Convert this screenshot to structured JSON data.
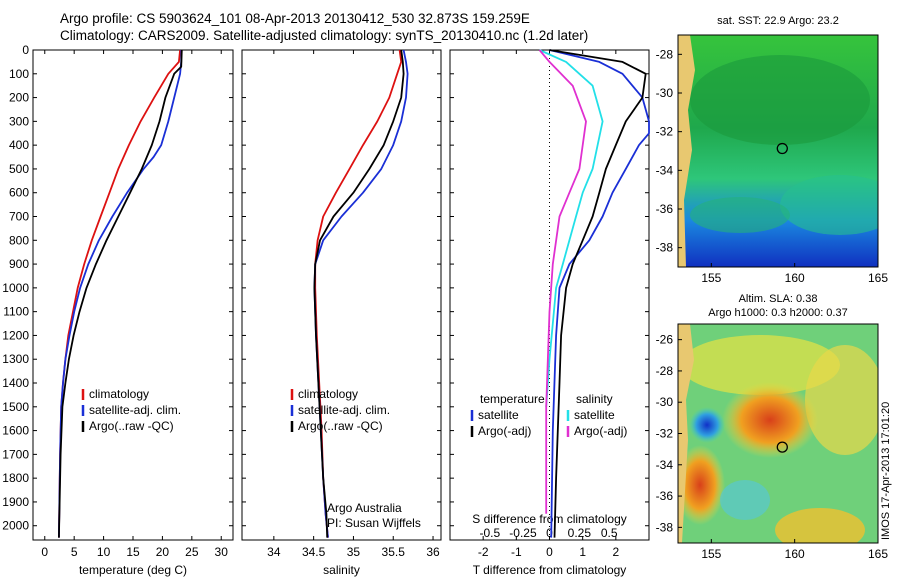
{
  "header": {
    "line1": "Argo profile: CS 5903624_101 08-Apr-2013 20130412_530 32.873S 159.259E",
    "line2": "Climatology: CARS2009. Satellite-adjusted climatology: synTS_20130410.nc (1.2d later)"
  },
  "colors": {
    "red": "#dd1111",
    "blue": "#1a2fd6",
    "black": "#000000",
    "cyan": "#22e0e8",
    "magenta": "#e030d0"
  },
  "depth_axis": {
    "ticks": [
      0,
      100,
      200,
      300,
      400,
      500,
      600,
      700,
      800,
      900,
      1000,
      1100,
      1200,
      1300,
      1400,
      1500,
      1600,
      1700,
      1800,
      1900,
      2000
    ],
    "ylim": [
      0,
      2060
    ],
    "reversed": true
  },
  "chart_data": [
    {
      "type": "line",
      "panel": "temperature",
      "xlabel": "temperature (deg C)",
      "xlim": [
        -2,
        32
      ],
      "xticks": [
        {
          "v": 0,
          "t": "0"
        },
        {
          "v": 5,
          "t": "5"
        },
        {
          "v": 10,
          "t": "10"
        },
        {
          "v": 15,
          "t": "15"
        },
        {
          "v": 20,
          "t": "20"
        },
        {
          "v": 25,
          "t": "25"
        },
        {
          "v": 30,
          "t": "30"
        }
      ],
      "legend": [
        "climatology",
        "satellite-adj. clim.",
        "Argo(..raw -QC)"
      ],
      "series": [
        {
          "name": "climatology",
          "color": "red",
          "x": [
            23.0,
            22.8,
            21.0,
            18.6,
            16.3,
            14.3,
            12.5,
            11.0,
            9.5,
            8.0,
            6.7,
            5.6,
            4.8,
            4.0,
            3.5,
            3.1,
            2.8,
            2.6,
            2.4
          ],
          "y": [
            0,
            50,
            100,
            200,
            300,
            400,
            500,
            600,
            700,
            800,
            900,
            1000,
            1100,
            1200,
            1300,
            1400,
            1500,
            1700,
            2050
          ]
        },
        {
          "name": "satellite-adj. clim.",
          "color": "blue",
          "x": [
            23.2,
            23.2,
            23.0,
            22.0,
            21.0,
            19.8,
            18.5,
            16.8,
            14.0,
            11.5,
            9.2,
            7.4,
            6.0,
            5.0,
            4.2,
            3.5,
            3.1,
            2.8,
            2.6,
            2.4
          ],
          "y": [
            0,
            50,
            100,
            200,
            300,
            400,
            450,
            500,
            600,
            700,
            800,
            900,
            1000,
            1100,
            1200,
            1300,
            1400,
            1500,
            1700,
            2050
          ]
        },
        {
          "name": "Argo(..raw -QC)",
          "color": "black",
          "x": [
            23.3,
            23.2,
            22.0,
            20.5,
            19.5,
            18.2,
            16.5,
            14.5,
            12.5,
            10.5,
            8.7,
            7.1,
            5.9,
            4.9,
            4.1,
            3.5,
            3.0,
            2.7,
            2.4
          ],
          "y": [
            0,
            70,
            100,
            200,
            300,
            400,
            500,
            600,
            700,
            800,
            900,
            1000,
            1100,
            1200,
            1300,
            1400,
            1500,
            1700,
            2050
          ]
        }
      ]
    },
    {
      "type": "line",
      "panel": "salinity",
      "xlabel": "salinity",
      "xlim": [
        33.6,
        36.1
      ],
      "xticks": [
        {
          "v": 34,
          "t": "34"
        },
        {
          "v": 34.5,
          "t": "34.5"
        },
        {
          "v": 35,
          "t": "35"
        },
        {
          "v": 35.5,
          "t": "35.5"
        },
        {
          "v": 36,
          "t": "36"
        }
      ],
      "legend": [
        "climatology",
        "satellite-adj. clim.",
        "Argo(..raw -QC)"
      ],
      "annotation": [
        "Argo Australia",
        "PI: Susan Wijffels"
      ],
      "series": [
        {
          "name": "climatology",
          "color": "red",
          "x": [
            35.58,
            35.6,
            35.55,
            35.45,
            35.3,
            35.12,
            34.95,
            34.78,
            34.62,
            34.55,
            34.52,
            34.52,
            34.54,
            34.57,
            34.6,
            34.62,
            34.65,
            34.68
          ],
          "y": [
            0,
            50,
            100,
            200,
            300,
            400,
            500,
            600,
            700,
            800,
            900,
            1000,
            1200,
            1400,
            1600,
            1800,
            1950,
            2050
          ]
        },
        {
          "name": "satellite-adj. clim.",
          "color": "blue",
          "x": [
            35.63,
            35.66,
            35.68,
            35.66,
            35.6,
            35.5,
            35.35,
            35.12,
            34.85,
            34.62,
            34.52,
            34.51,
            34.53,
            34.56,
            34.59,
            34.62,
            34.65,
            34.68
          ],
          "y": [
            0,
            50,
            100,
            200,
            300,
            400,
            500,
            600,
            700,
            800,
            900,
            1000,
            1200,
            1400,
            1600,
            1800,
            1950,
            2050
          ]
        },
        {
          "name": "Argo(..raw -QC)",
          "color": "black",
          "x": [
            35.6,
            35.62,
            35.63,
            35.6,
            35.5,
            35.38,
            35.2,
            35.0,
            34.75,
            34.58,
            34.52,
            34.51,
            34.53,
            34.56,
            34.59,
            34.62,
            34.66,
            34.67
          ],
          "y": [
            0,
            50,
            100,
            200,
            300,
            400,
            500,
            600,
            700,
            800,
            900,
            1000,
            1200,
            1400,
            1600,
            1800,
            1950,
            2050
          ]
        }
      ]
    },
    {
      "type": "line",
      "panel": "difference",
      "xlabel": "T difference from climatology",
      "xlabel2": "S difference from climatology",
      "xlim": [
        -3,
        3
      ],
      "xticks": [
        {
          "v": -2,
          "t": "-2"
        },
        {
          "v": -1,
          "t": "-1"
        },
        {
          "v": 0,
          "t": "0"
        },
        {
          "v": 1,
          "t": "1"
        },
        {
          "v": 2,
          "t": "2"
        }
      ],
      "xticks2": [
        {
          "v": -1.8,
          "t": "-0.5"
        },
        {
          "v": -0.8,
          "t": "-0.25"
        },
        {
          "v": 0,
          "t": "0"
        },
        {
          "v": 0.9,
          "t": "0.25"
        },
        {
          "v": 1.8,
          "t": "0.5"
        }
      ],
      "legend_groups": [
        {
          "title": "temperature",
          "items": [
            "satellite",
            "Argo(-adj)"
          ]
        },
        {
          "title": "salinity",
          "items": [
            "satellite",
            "Argo(-adj)"
          ]
        }
      ],
      "series": [
        {
          "name": "temperature satellite",
          "color": "blue",
          "x": [
            0.0,
            1.5,
            2.2,
            2.8,
            3.0,
            3.0,
            2.7,
            2.3,
            1.9,
            1.6,
            1.2,
            0.6,
            0.3,
            0.2,
            0.1,
            0.05
          ],
          "y": [
            0,
            50,
            100,
            200,
            300,
            350,
            400,
            500,
            600,
            700,
            800,
            900,
            1000,
            1200,
            1600,
            2050
          ]
        },
        {
          "name": "temperature Argo(-adj)",
          "color": "black",
          "x": [
            0.0,
            2.2,
            2.9,
            2.8,
            2.3,
            2.0,
            1.7,
            1.5,
            1.3,
            1.0,
            0.7,
            0.5,
            0.35,
            0.3,
            0.2,
            0.15
          ],
          "y": [
            0,
            50,
            100,
            200,
            300,
            400,
            500,
            600,
            700,
            800,
            900,
            1000,
            1200,
            1400,
            1800,
            2050
          ]
        },
        {
          "name": "salinity satellite",
          "color": "cyan",
          "x": [
            -0.3,
            0.5,
            1.3,
            1.6,
            1.3,
            1.0,
            0.8,
            0.4,
            0.2,
            0.0,
            -0.1
          ],
          "y": [
            0,
            50,
            150,
            300,
            500,
            600,
            700,
            900,
            1000,
            1300,
            1500
          ]
        },
        {
          "name": "salinity Argo(-adj)",
          "color": "magenta",
          "x": [
            -0.3,
            0.0,
            0.7,
            1.1,
            0.9,
            0.6,
            0.3,
            0.1,
            0.0,
            -0.1,
            -0.1
          ],
          "y": [
            0,
            50,
            150,
            300,
            500,
            600,
            700,
            900,
            1100,
            1500,
            1950
          ]
        }
      ]
    },
    {
      "type": "heatmap",
      "panel": "sst-map",
      "title": "sat. SST: 22.9 Argo: 23.2",
      "xticks": [
        "155",
        "160",
        "165"
      ],
      "yticks": [
        "-28",
        "-30",
        "-32",
        "-34",
        "-36",
        "-38"
      ],
      "xlim": [
        153,
        165
      ],
      "ylim": [
        -39,
        -27
      ],
      "marker": {
        "lon": 159.26,
        "lat": -32.87
      }
    },
    {
      "type": "heatmap",
      "panel": "sla-map",
      "title": "Altim. SLA: 0.38",
      "subtitle": "Argo h1000: 0.3 h2000: 0.37",
      "xticks": [
        "155",
        "160",
        "165"
      ],
      "yticks": [
        "-26",
        "-28",
        "-30",
        "-32",
        "-34",
        "-36",
        "-38"
      ],
      "xlim": [
        153,
        165
      ],
      "ylim": [
        -39,
        -25
      ],
      "marker": {
        "lon": 159.26,
        "lat": -32.87
      }
    }
  ],
  "footer": {
    "stamp": "IMOS 17-Apr-2013 17:01:20"
  }
}
